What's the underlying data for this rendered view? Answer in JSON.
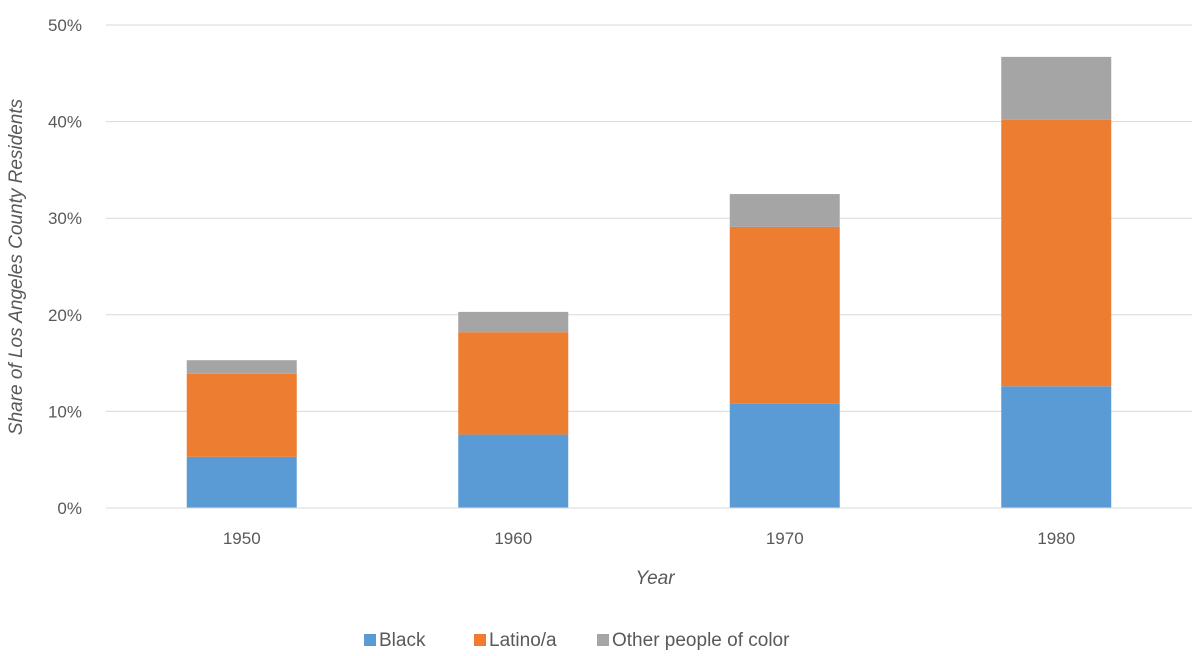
{
  "chart_data": {
    "type": "bar",
    "stacked": true,
    "categories": [
      "1950",
      "1960",
      "1970",
      "1980"
    ],
    "series": [
      {
        "name": "Black",
        "values": [
          5.3,
          7.6,
          10.8,
          12.6
        ],
        "color": "#5B9BD5"
      },
      {
        "name": "Latino/a",
        "values": [
          8.6,
          10.6,
          18.3,
          27.6
        ],
        "color": "#ED7D31"
      },
      {
        "name": "Other people of color",
        "values": [
          1.4,
          2.1,
          3.4,
          6.5
        ],
        "color": "#A5A5A5"
      }
    ],
    "title": "",
    "xlabel": "Year",
    "ylabel": "Share of Los Angeles County Residents",
    "ylim": [
      0,
      50
    ],
    "yticks": [
      "0%",
      "10%",
      "20%",
      "30%",
      "40%",
      "50%"
    ],
    "grid": true,
    "legend_position": "bottom"
  }
}
